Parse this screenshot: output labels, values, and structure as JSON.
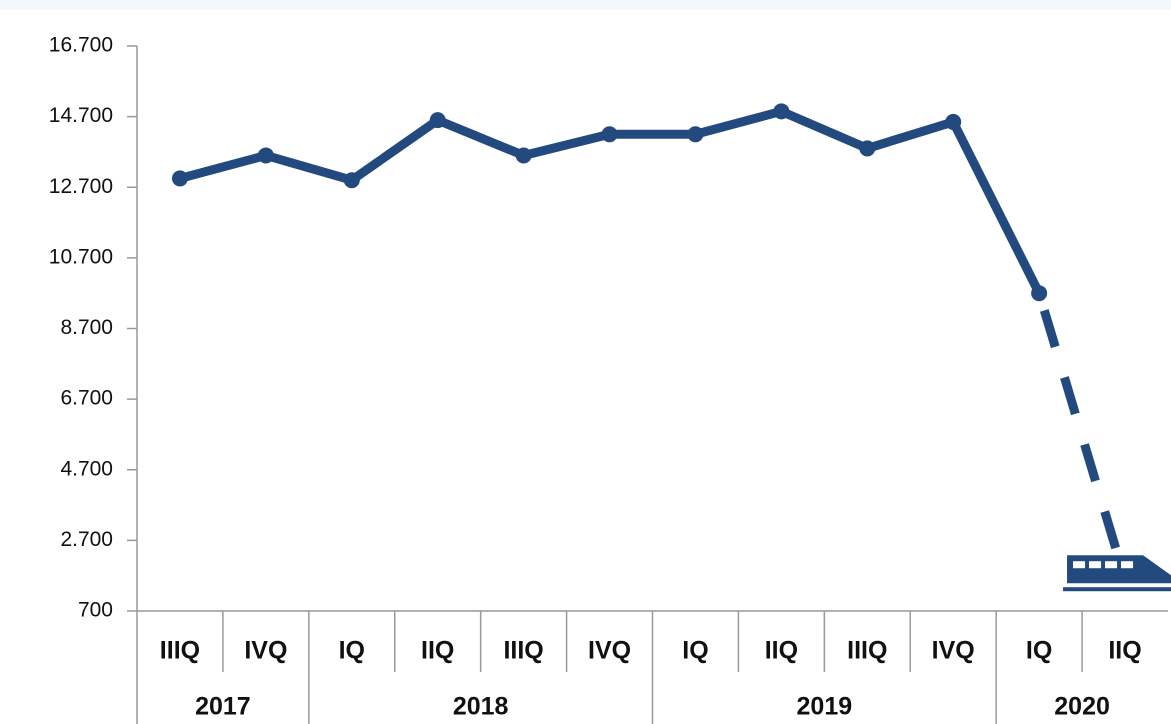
{
  "chart_data": {
    "type": "line",
    "categories": [
      "IIIQ",
      "IVQ",
      "IQ",
      "IIQ",
      "IIIQ",
      "IVQ",
      "IQ",
      "IIQ",
      "IIIQ",
      "IVQ",
      "IQ",
      "IIQ"
    ],
    "groups": [
      {
        "label": "2017",
        "span": 2
      },
      {
        "label": "2018",
        "span": 4
      },
      {
        "label": "2019",
        "span": 4
      },
      {
        "label": "2020",
        "span": 2
      }
    ],
    "series": [
      {
        "color": "#234a7e",
        "values": [
          12950,
          13600,
          12900,
          14600,
          13600,
          14200,
          14200,
          14850,
          13800,
          14550,
          9700,
          1600
        ]
      }
    ],
    "dashed_from": 10,
    "ylim": [
      700,
      16700
    ],
    "yticks": [
      700,
      {
        "value": 2700,
        "label": "2.700"
      },
      {
        "value": 4700,
        "label": "4.700"
      },
      {
        "value": 6700,
        "label": "6.700"
      },
      {
        "value": 8700,
        "label": "8.700"
      },
      {
        "value": 10700,
        "label": "10.700"
      },
      {
        "value": 12700,
        "label": "12.700"
      },
      {
        "value": 14700,
        "label": "14.700"
      },
      {
        "value": 16700,
        "label": "16.700"
      }
    ]
  }
}
